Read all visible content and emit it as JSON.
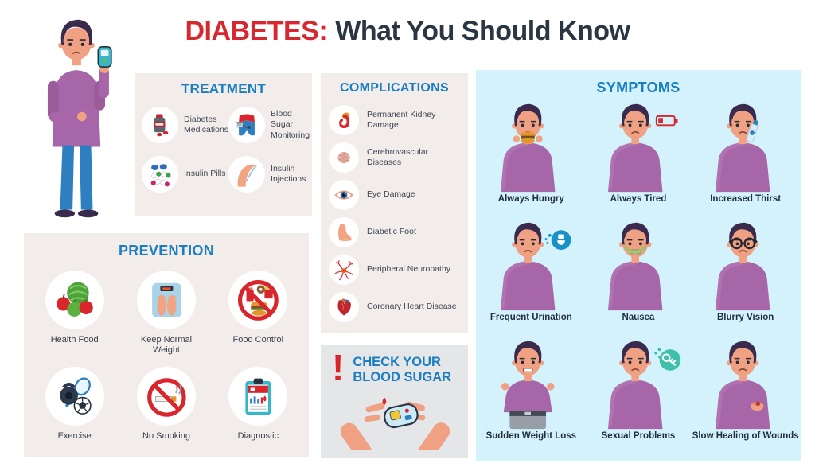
{
  "title": {
    "highlight": "DIABETES:",
    "rest": "What You Should Know"
  },
  "colors": {
    "accent_red": "#d7282f",
    "heading_blue": "#1b7ec2",
    "title_dark": "#2a3644",
    "panel_beige": "#f2ecea",
    "panel_gray": "#e4e6e8",
    "panel_light_blue": "#d3f2fc",
    "character_purple": "#a766a7",
    "label_dark": "#222e3c"
  },
  "treatment": {
    "heading": "TREATMENT",
    "items": [
      {
        "label": "Diabetes Medications",
        "icon": "medications"
      },
      {
        "label": "Blood Sugar Monitoring",
        "icon": "monitoring"
      },
      {
        "label": "Insulin Pills",
        "icon": "insulin-pills"
      },
      {
        "label": "Insulin Injections",
        "icon": "injection"
      }
    ]
  },
  "complications": {
    "heading": "COMPLICATIONS",
    "items": [
      {
        "label": "Permanent Kidney Damage",
        "icon": "kidney"
      },
      {
        "label": "Cerebrovascular Diseases",
        "icon": "brain"
      },
      {
        "label": "Eye Damage",
        "icon": "eye"
      },
      {
        "label": "Diabetic Foot",
        "icon": "foot"
      },
      {
        "label": "Peripheral Neuropathy",
        "icon": "neuron"
      },
      {
        "label": "Coronary Heart Disease",
        "icon": "heart"
      }
    ]
  },
  "prevention": {
    "heading": "PREVENTION",
    "items": [
      {
        "label": "Health Food",
        "icon": "health-food"
      },
      {
        "label": "Keep Normal Weight",
        "icon": "weight-scale"
      },
      {
        "label": "Food Control",
        "icon": "food-control"
      },
      {
        "label": "Exercise",
        "icon": "exercise"
      },
      {
        "label": "No Smoking",
        "icon": "no-smoking"
      },
      {
        "label": "Diagnostic",
        "icon": "diagnostic"
      }
    ]
  },
  "check_blood_sugar": {
    "alert": "!",
    "heading_line1": "CHECK YOUR",
    "heading_line2": "BLOOD SUGAR"
  },
  "symptoms": {
    "heading": "SYMPTOMS",
    "items": [
      {
        "label": "Always Hungry",
        "variant": "hungry"
      },
      {
        "label": "Always Tired",
        "variant": "tired"
      },
      {
        "label": "Increased Thirst",
        "variant": "thirst"
      },
      {
        "label": "Frequent Urination",
        "variant": "urination"
      },
      {
        "label": "Nausea",
        "variant": "nausea"
      },
      {
        "label": "Blurry Vision",
        "variant": "blurry-vision"
      },
      {
        "label": "Sudden Weight Loss",
        "variant": "weight-loss"
      },
      {
        "label": "Sexual Problems",
        "variant": "sexual-problems"
      },
      {
        "label": "Slow Healing of Wounds",
        "variant": "slow-healing"
      }
    ]
  }
}
